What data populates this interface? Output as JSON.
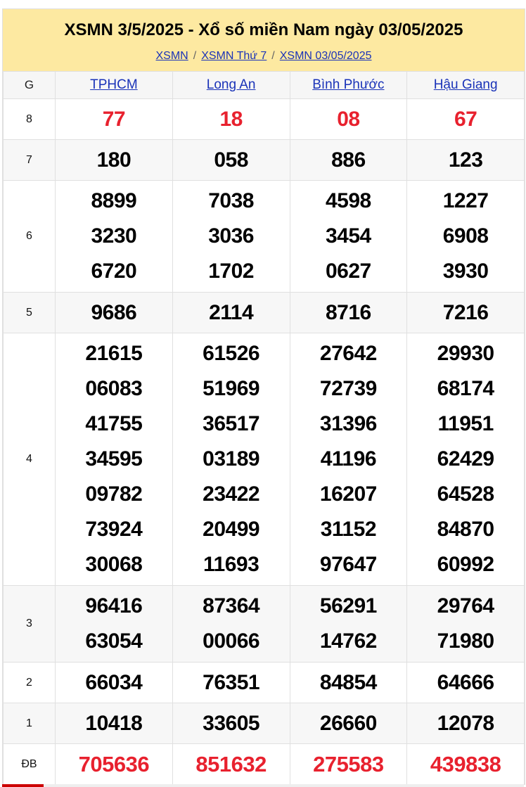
{
  "header": {
    "title": "XSMN 3/5/2025 - Xổ số miền Nam ngày 03/05/2025",
    "breadcrumbs": [
      "XSMN",
      "XSMN Thứ 7",
      "XSMN 03/05/2025"
    ],
    "separator": "/"
  },
  "table": {
    "g_label": "G",
    "provinces": [
      "TPHCM",
      "Long An",
      "Bình Phước",
      "Hậu Giang"
    ],
    "rows": [
      {
        "prize": "8",
        "values": [
          [
            "77"
          ],
          [
            "18"
          ],
          [
            "08"
          ],
          [
            "67"
          ]
        ]
      },
      {
        "prize": "7",
        "values": [
          [
            "180"
          ],
          [
            "058"
          ],
          [
            "886"
          ],
          [
            "123"
          ]
        ]
      },
      {
        "prize": "6",
        "values": [
          [
            "8899",
            "3230",
            "6720"
          ],
          [
            "7038",
            "3036",
            "1702"
          ],
          [
            "4598",
            "3454",
            "0627"
          ],
          [
            "1227",
            "6908",
            "3930"
          ]
        ]
      },
      {
        "prize": "5",
        "values": [
          [
            "9686"
          ],
          [
            "2114"
          ],
          [
            "8716"
          ],
          [
            "7216"
          ]
        ]
      },
      {
        "prize": "4",
        "values": [
          [
            "21615",
            "06083",
            "41755",
            "34595",
            "09782",
            "73924",
            "30068"
          ],
          [
            "61526",
            "51969",
            "36517",
            "03189",
            "23422",
            "20499",
            "11693"
          ],
          [
            "27642",
            "72739",
            "31396",
            "41196",
            "16207",
            "31152",
            "97647"
          ],
          [
            "29930",
            "68174",
            "11951",
            "62429",
            "64528",
            "84870",
            "60992"
          ]
        ]
      },
      {
        "prize": "3",
        "values": [
          [
            "96416",
            "63054"
          ],
          [
            "87364",
            "00066"
          ],
          [
            "56291",
            "14762"
          ],
          [
            "29764",
            "71980"
          ]
        ]
      },
      {
        "prize": "2",
        "values": [
          [
            "66034"
          ],
          [
            "76351"
          ],
          [
            "84854"
          ],
          [
            "64666"
          ]
        ]
      },
      {
        "prize": "1",
        "values": [
          [
            "10418"
          ],
          [
            "33605"
          ],
          [
            "26660"
          ],
          [
            "12078"
          ]
        ]
      },
      {
        "prize": "ĐB",
        "values": [
          [
            "705636"
          ],
          [
            "851632"
          ],
          [
            "275583"
          ],
          [
            "439838"
          ]
        ]
      }
    ]
  },
  "colors": {
    "header_bg": "#fde9a1",
    "link": "#1a33b8",
    "highlight": "#e8212e"
  }
}
